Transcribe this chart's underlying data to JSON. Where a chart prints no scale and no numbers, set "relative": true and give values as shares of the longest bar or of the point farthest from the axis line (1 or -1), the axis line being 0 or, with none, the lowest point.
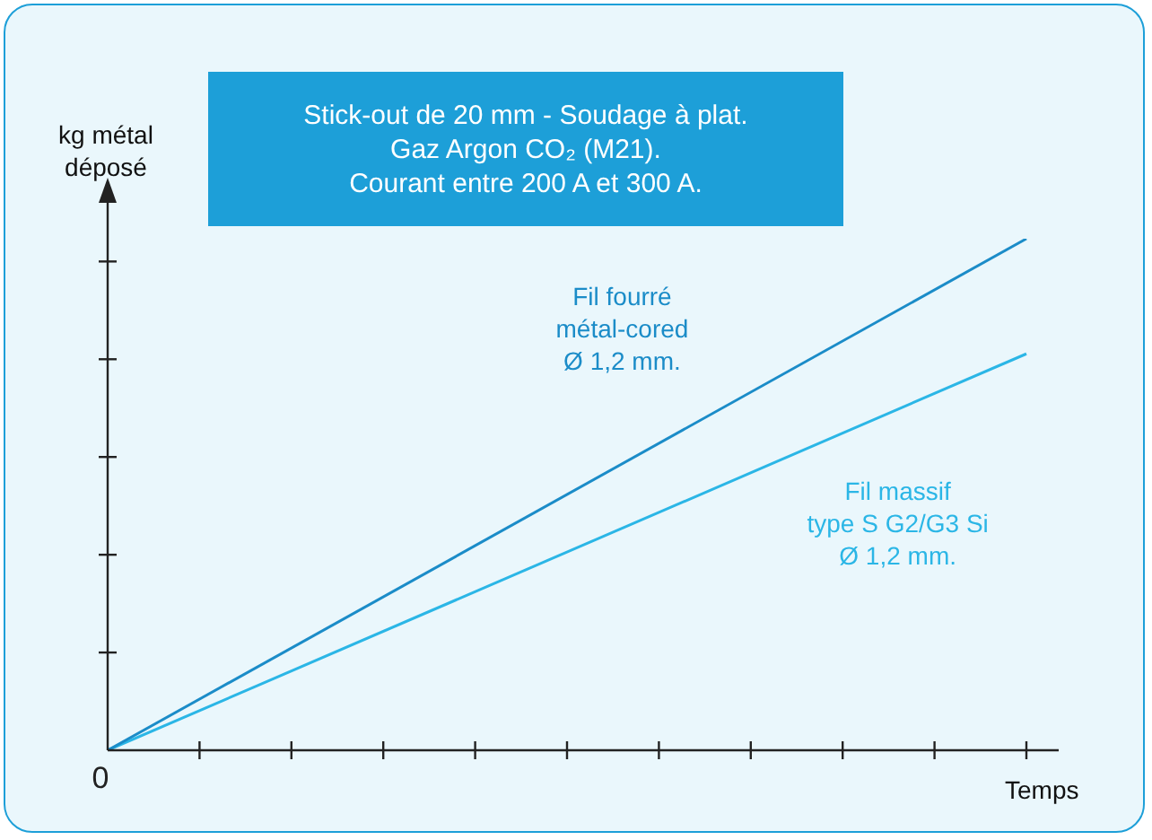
{
  "chart_data": {
    "type": "line",
    "relative": true,
    "title": "Stick-out de 20 mm - Soudage à plat.\nGaz Argon CO₂ (M21).\nCourant entre 200 A et 300 A.",
    "ylabel": "kg métal\ndéposé",
    "xlabel": "Temps",
    "annotations": [
      "0"
    ],
    "categories": [
      null,
      null
    ],
    "legend": false,
    "marker": "none",
    "series": [
      {
        "name": "Fil fourré\nmétal-cored\nØ 1,2 mm.",
        "color": "#1b8cc8",
        "values": [
          0,
          1
        ]
      },
      {
        "name": "Fil massif\ntype S G2/G3 Si\nØ 1,2 mm.",
        "color": "#2bb6e6",
        "values": [
          0,
          0.775
        ]
      }
    ]
  }
}
